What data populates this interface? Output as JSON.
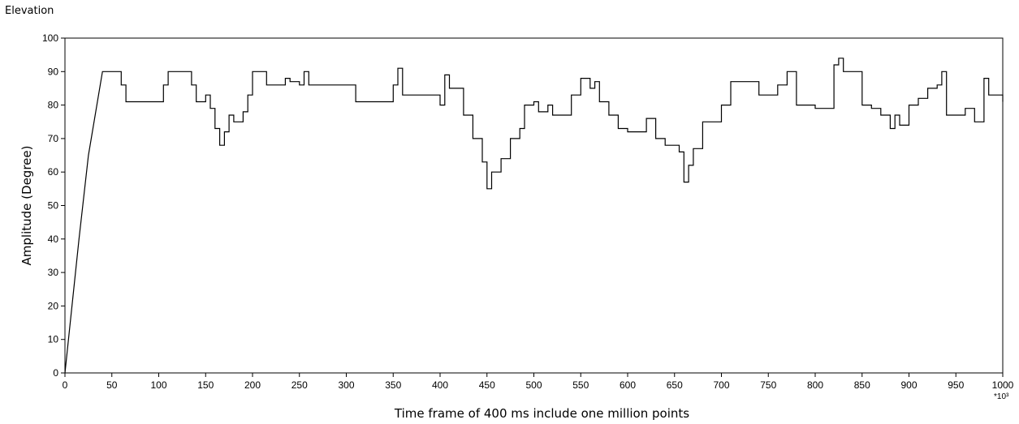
{
  "window": {
    "title": "Elevation"
  },
  "chart_data": {
    "type": "line",
    "title": "",
    "xlabel": "Time frame of 400 ms include one million points",
    "ylabel": "Amplitude (Degree)",
    "x_multiplier": "*10³",
    "xlim": [
      0,
      1000
    ],
    "ylim": [
      0,
      100
    ],
    "x_ticks": [
      0,
      50,
      100,
      150,
      200,
      250,
      300,
      350,
      400,
      450,
      500,
      550,
      600,
      650,
      700,
      750,
      800,
      850,
      900,
      950,
      1000
    ],
    "y_ticks": [
      0,
      10,
      20,
      30,
      40,
      50,
      60,
      70,
      80,
      90,
      100
    ],
    "grid": false,
    "line_color": "#000000",
    "series": [
      {
        "x": [
          0,
          15,
          25,
          40,
          58,
          60,
          65,
          100,
          105,
          110,
          130,
          135,
          140,
          150,
          155,
          160,
          165,
          170,
          175,
          180,
          185,
          190,
          195,
          200,
          210,
          215,
          220,
          235,
          240,
          250,
          255,
          260,
          265,
          300,
          310,
          340,
          350,
          355,
          360,
          375,
          400,
          405,
          410,
          425,
          435,
          445,
          450,
          455,
          465,
          475,
          485,
          490,
          500,
          505,
          515,
          520,
          530,
          540,
          550,
          560,
          565,
          570,
          580,
          590,
          600,
          620,
          630,
          640,
          655,
          660,
          665,
          670,
          680,
          700,
          710,
          735,
          740,
          760,
          770,
          780,
          800,
          820,
          825,
          830,
          850,
          860,
          870,
          880,
          885,
          890,
          900,
          910,
          920,
          930,
          935,
          940,
          950,
          960,
          970,
          980,
          985,
          990,
          1000
        ],
        "y": [
          0,
          40,
          65,
          90,
          90,
          86,
          81,
          81,
          86,
          90,
          90,
          86,
          81,
          83,
          79,
          73,
          68,
          72,
          77,
          75,
          75,
          78,
          83,
          90,
          90,
          86,
          86,
          88,
          87,
          86,
          90,
          86,
          86,
          86,
          81,
          81,
          86,
          91,
          83,
          83,
          80,
          89,
          85,
          77,
          70,
          63,
          55,
          60,
          64,
          70,
          73,
          80,
          81,
          78,
          80,
          77,
          77,
          83,
          88,
          85,
          87,
          81,
          77,
          73,
          72,
          76,
          70,
          68,
          66,
          57,
          62,
          67,
          75,
          80,
          87,
          87,
          83,
          86,
          90,
          80,
          79,
          92,
          94,
          90,
          80,
          79,
          77,
          73,
          77,
          74,
          80,
          82,
          85,
          86,
          90,
          77,
          77,
          79,
          75,
          88,
          83,
          83,
          81
        ]
      }
    ]
  }
}
